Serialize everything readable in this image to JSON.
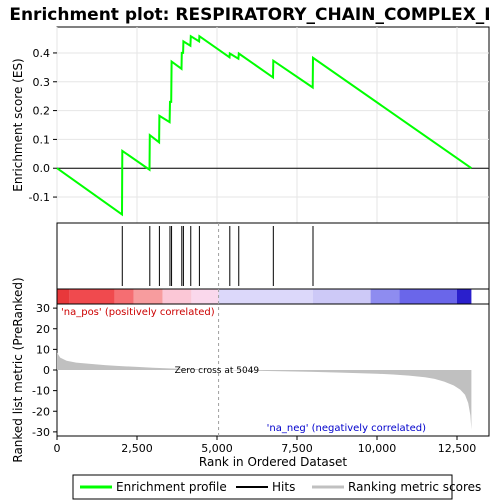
{
  "chart_data": {
    "type": "line",
    "title": "Enrichment plot: RESPIRATORY_CHAIN_COMPLEX_I",
    "xlabel": "Rank in Ordered Dataset",
    "xlim": [
      0,
      13500
    ],
    "x_ticks": [
      0,
      2500,
      5000,
      7500,
      10000,
      12500
    ],
    "x_tick_labels": [
      "0",
      "2,500",
      "5,000",
      "7,500",
      "10,000",
      "12,500"
    ],
    "panels": {
      "enrichment": {
        "ylabel": "Enrichment score (ES)",
        "ylim": [
          -0.19,
          0.49
        ],
        "y_ticks": [
          -0.1,
          0.0,
          0.1,
          0.2,
          0.3,
          0.4
        ],
        "y_tick_labels": [
          "-0.1",
          "0.0",
          "0.1",
          "0.2",
          "0.3",
          "0.4"
        ],
        "baseline": 0.0,
        "series": [
          {
            "name": "Enrichment profile",
            "color": "#00ff00",
            "x": [
              0,
              2030,
              2040,
              2890,
              2900,
              3190,
              3200,
              3520,
              3530,
              3570,
              3580,
              3890,
              3900,
              3940,
              3950,
              4170,
              4180,
              4440,
              4450,
              5390,
              5400,
              5670,
              5680,
              6750,
              6760,
              7990,
              8000,
              12950
            ],
            "y": [
              0.0,
              -0.16,
              0.06,
              -0.005,
              0.115,
              0.09,
              0.182,
              0.16,
              0.23,
              0.23,
              0.37,
              0.345,
              0.4,
              0.4,
              0.44,
              0.425,
              0.458,
              0.44,
              0.458,
              0.385,
              0.398,
              0.38,
              0.398,
              0.315,
              0.373,
              0.28,
              0.383,
              0.0
            ]
          }
        ]
      },
      "hits": {
        "series_name": "Hits",
        "positions": [
          2040,
          2900,
          3200,
          3530,
          3580,
          3900,
          3950,
          4180,
          4450,
          5400,
          5680,
          6760,
          8000
        ]
      },
      "ranked_metric": {
        "ylabel": "Ranked list metric (PreRanked)",
        "series_name": "Ranking metric scores",
        "ylim": [
          -32,
          32
        ],
        "y_ticks": [
          -30,
          -20,
          -10,
          0,
          10,
          20,
          30
        ],
        "y_tick_labels": [
          "-30",
          "-20",
          "-10",
          "0",
          "10",
          "20",
          "30"
        ],
        "x": [
          0,
          100,
          300,
          600,
          1000,
          1500,
          2000,
          2500,
          3000,
          3500,
          4000,
          4500,
          5049,
          6000,
          7000,
          8000,
          9000,
          10000,
          10500,
          11000,
          11500,
          11800,
          12100,
          12400,
          12600,
          12750,
          12850,
          12920,
          12950
        ],
        "values": [
          8.5,
          6.0,
          4.5,
          3.6,
          3.0,
          2.4,
          1.9,
          1.5,
          1.1,
          0.8,
          0.5,
          0.3,
          0.0,
          -0.3,
          -0.6,
          -0.9,
          -1.3,
          -1.8,
          -2.2,
          -2.7,
          -3.5,
          -4.3,
          -5.6,
          -7.5,
          -9.5,
          -12.0,
          -16.0,
          -22.0,
          -29.0
        ],
        "annotations": {
          "zero_cross": "Zero cross at 5049",
          "zero_cross_x": 5049,
          "pos_label": "'na_pos' (positively correlated)",
          "neg_label": "'na_neg' (negatively correlated)"
        }
      }
    },
    "legend": {
      "placement": "bottom",
      "entries": [
        {
          "label": "Enrichment profile",
          "color": "#00ff00"
        },
        {
          "label": "Hits",
          "color": "#000000"
        },
        {
          "label": "Ranking metric scores",
          "color": "#c0c0c0"
        }
      ]
    }
  }
}
